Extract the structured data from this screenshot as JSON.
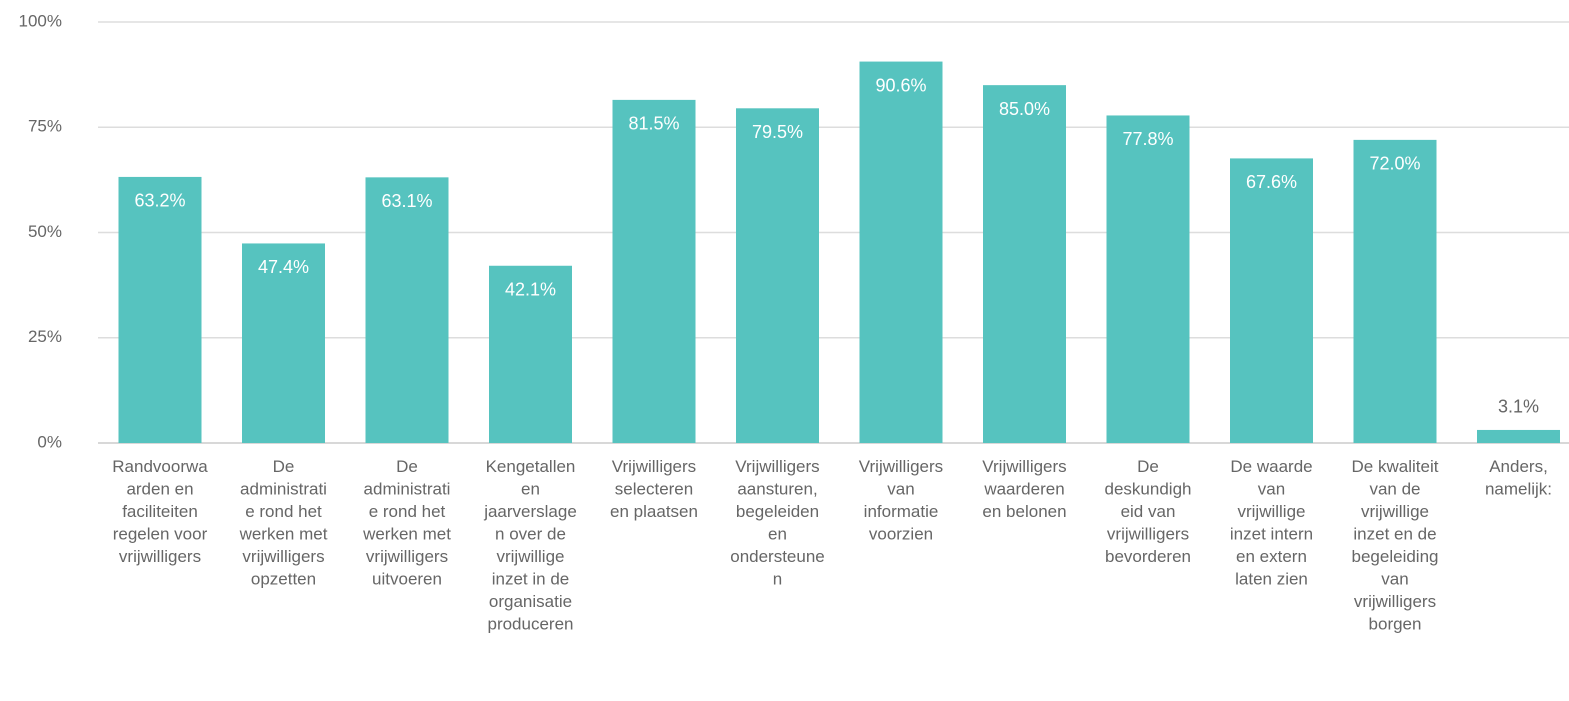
{
  "chart_data": {
    "type": "bar",
    "categories": [
      "Randvoorwaarden en faciliteiten regelen voor vrijwilligers",
      "De administratie rond het werken met vrijwilligers opzetten",
      "De administratie rond het werken met vrijwilligers uitvoeren",
      "Kengetallen en jaarverslagen over de vrijwillige inzet in de organisatie produceren",
      "Vrijwilligers selecteren en plaatsen",
      "Vrijwilligers aansturen, begeleiden en ondersteunen",
      "Vrijwilligers van informatie voorzien",
      "Vrijwilligers waarderen en belonen",
      "De deskundigheid van vrijwilligers bevorderen",
      "De waarde van vrijwillige inzet intern en extern laten zien",
      "De kwaliteit van de vrijwillige inzet en de begeleiding van vrijwilligers borgen",
      "Anders, namelijk:"
    ],
    "values": [
      63.2,
      47.4,
      63.1,
      42.1,
      81.5,
      79.5,
      90.6,
      85.0,
      77.8,
      67.6,
      72.0,
      3.1
    ],
    "value_labels": [
      "63.2%",
      "47.4%",
      "63.1%",
      "42.1%",
      "81.5%",
      "79.5%",
      "90.6%",
      "85.0%",
      "77.8%",
      "67.6%",
      "72.0%",
      "3.1%"
    ],
    "color": "#56c3bf",
    "ylim": [
      0,
      100
    ],
    "yticks": [
      {
        "value": 0,
        "label": "0%"
      },
      {
        "value": 25,
        "label": "25%"
      },
      {
        "value": 50,
        "label": "50%"
      },
      {
        "value": 75,
        "label": "75%"
      },
      {
        "value": 100,
        "label": "100%"
      }
    ],
    "grid": true
  }
}
